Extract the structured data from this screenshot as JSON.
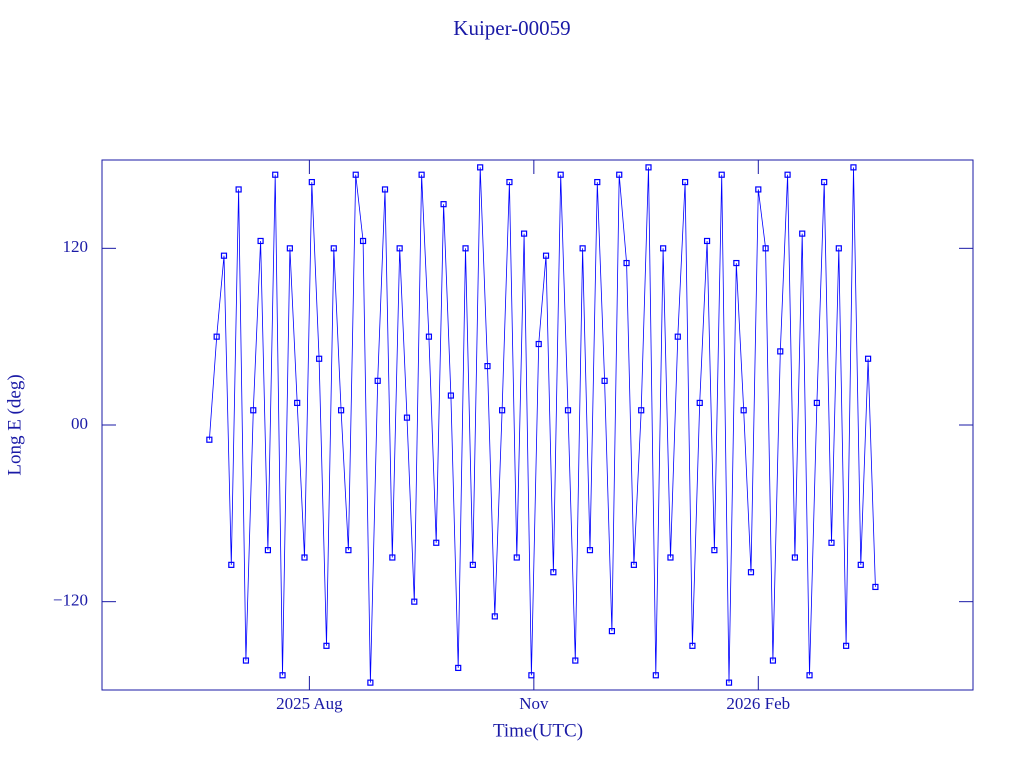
{
  "chart_data": {
    "type": "line",
    "title": "Kuiper-00059",
    "x_label": "Time(UTC)",
    "y_label": "Long E (deg)",
    "color": "#0000ff",
    "xlim": [
      "2025-05-08",
      "2026-04-30"
    ],
    "xticks": [
      {
        "value": "2025-08-01",
        "label": "2025 Aug"
      },
      {
        "value": "2025-11-01",
        "label": "Nov"
      },
      {
        "value": "2026-02-01",
        "label": "2026 Feb"
      }
    ],
    "ylim": [
      -180,
      180
    ],
    "yticks": [
      {
        "value": -120,
        "label": "−120"
      },
      {
        "value": 0,
        "label": "00"
      },
      120
    ],
    "x": [
      "2025-06-21",
      "2025-06-24",
      "2025-06-27",
      "2025-06-30",
      "2025-07-03",
      "2025-07-06",
      "2025-07-09",
      "2025-07-12",
      "2025-07-15",
      "2025-07-18",
      "2025-07-21",
      "2025-07-24",
      "2025-07-27",
      "2025-07-30",
      "2025-08-02",
      "2025-08-05",
      "2025-08-08",
      "2025-08-11",
      "2025-08-14",
      "2025-08-17",
      "2025-08-20",
      "2025-08-23",
      "2025-08-26",
      "2025-08-29",
      "2025-09-01",
      "2025-09-04",
      "2025-09-07",
      "2025-09-10",
      "2025-09-13",
      "2025-09-16",
      "2025-09-19",
      "2025-09-22",
      "2025-09-25",
      "2025-09-28",
      "2025-10-01",
      "2025-10-04",
      "2025-10-07",
      "2025-10-10",
      "2025-10-13",
      "2025-10-16",
      "2025-10-19",
      "2025-10-22",
      "2025-10-25",
      "2025-10-28",
      "2025-10-31",
      "2025-11-03",
      "2025-11-06",
      "2025-11-09",
      "2025-11-12",
      "2025-11-15",
      "2025-11-18",
      "2025-11-21",
      "2025-11-24",
      "2025-11-27",
      "2025-11-30",
      "2025-12-03",
      "2025-12-06",
      "2025-12-09",
      "2025-12-12",
      "2025-12-15",
      "2025-12-18",
      "2025-12-21",
      "2025-12-24",
      "2025-12-27",
      "2025-12-30",
      "2026-01-02",
      "2026-01-05",
      "2026-01-08",
      "2026-01-11",
      "2026-01-14",
      "2026-01-17",
      "2026-01-20",
      "2026-01-23",
      "2026-01-26",
      "2026-01-29",
      "2026-02-01",
      "2026-02-04",
      "2026-02-07",
      "2026-02-10",
      "2026-02-13",
      "2026-02-16",
      "2026-02-19",
      "2026-02-22",
      "2026-02-25",
      "2026-02-28",
      "2026-03-03",
      "2026-03-06",
      "2026-03-09",
      "2026-03-12",
      "2026-03-15",
      "2026-03-18",
      "2026-03-21"
    ],
    "values": [
      -10,
      60,
      115,
      -95,
      160,
      -160,
      10,
      125,
      -85,
      170,
      -170,
      120,
      15,
      -90,
      165,
      45,
      -150,
      120,
      10,
      -85,
      170,
      125,
      -175,
      30,
      160,
      -90,
      120,
      5,
      -120,
      170,
      60,
      -80,
      150,
      20,
      -165,
      120,
      -95,
      175,
      40,
      -130,
      10,
      165,
      -90,
      130,
      -170,
      55,
      115,
      -100,
      170,
      10,
      -160,
      120,
      -85,
      165,
      30,
      -140,
      170,
      110,
      -95,
      10,
      175,
      -170,
      120,
      -90,
      60,
      165,
      -150,
      15,
      125,
      -85,
      170,
      -175,
      110,
      10,
      -100,
      160,
      120,
      -160,
      50,
      170,
      -90,
      130,
      -170,
      15,
      165,
      -80,
      120,
      -150,
      175,
      -95,
      45,
      -110
    ]
  }
}
